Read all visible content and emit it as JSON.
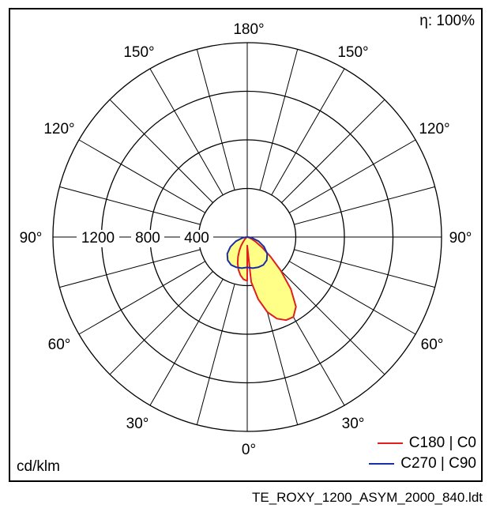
{
  "efficiency_label": "η: 100%",
  "unit_label": "cd/klm",
  "file_name": "TE_ROXY_1200_ASYM_2000_840.ldt",
  "angle_labels": {
    "deg180": "180°",
    "deg150_left": "150°",
    "deg150_right": "150°",
    "deg120_left": "120°",
    "deg120_right": "120°",
    "deg90_left": "90°",
    "deg90_right": "90°",
    "deg60_left": "60°",
    "deg60_right": "60°",
    "deg30_left": "30°",
    "deg30_right": "30°",
    "deg0": "0°"
  },
  "radial_labels": {
    "r1200": "1200",
    "r800": "800",
    "r400": "400"
  },
  "legend": {
    "c180_c0": "C180 | C0",
    "c270_c90": "C270 | C90"
  },
  "colors": {
    "c180_c0": "#e0201c",
    "c270_c90": "#1b2ea8",
    "fill": "#ffff88",
    "grid": "#000000"
  },
  "chart_data": {
    "type": "polar",
    "radial_ticks": [
      400,
      800,
      1200
    ],
    "radial_max": 1600,
    "angular_step_deg": 15,
    "series": [
      {
        "name": "C180 | C0",
        "angles_deg": [
          0,
          5,
          10,
          15,
          20,
          25,
          30,
          35,
          40,
          45,
          50,
          55,
          60,
          65,
          70,
          75,
          80,
          85,
          90
        ],
        "left": [
          360,
          350,
          320,
          280,
          230,
          180,
          130,
          90,
          55,
          32,
          20,
          12,
          8,
          6,
          4,
          3,
          2,
          1,
          0
        ],
        "right": [
          70,
          370,
          520,
          640,
          715,
          755,
          760,
          700,
          560,
          390,
          250,
          150,
          85,
          45,
          22,
          10,
          4,
          2,
          0
        ]
      },
      {
        "name": "C270 | C90",
        "angles_deg": [
          0,
          10,
          20,
          30,
          40,
          50,
          60,
          70,
          80,
          85,
          90
        ],
        "left": [
          250,
          260,
          265,
          265,
          250,
          215,
          160,
          100,
          40,
          15,
          0
        ],
        "right": [
          250,
          260,
          265,
          265,
          250,
          215,
          160,
          100,
          40,
          15,
          0
        ]
      }
    ]
  }
}
